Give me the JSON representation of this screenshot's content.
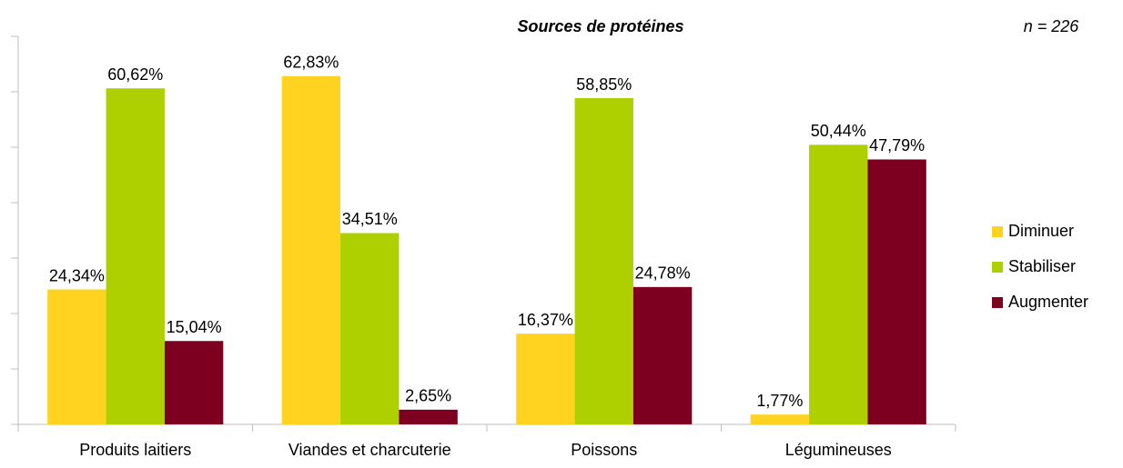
{
  "chart_data": {
    "type": "bar",
    "title": "Sources de protéines",
    "annotation": "n = 226",
    "categories": [
      "Produits laitiers",
      "Viandes et charcuterie",
      "Poissons",
      "Légumineuses"
    ],
    "series": [
      {
        "name": "Diminuer",
        "color": "#ffd320",
        "values": [
          24.34,
          62.83,
          16.37,
          1.77
        ],
        "value_labels": [
          "24,34%",
          "62,83%",
          "16,37%",
          "1,77%"
        ]
      },
      {
        "name": "Stabiliser",
        "color": "#aecf00",
        "values": [
          60.62,
          34.51,
          58.85,
          50.44
        ],
        "value_labels": [
          "60,62%",
          "34,51%",
          "58,85%",
          "50,44%"
        ]
      },
      {
        "name": "Augmenter",
        "color": "#7e0021",
        "values": [
          15.04,
          2.65,
          24.78,
          47.79
        ],
        "value_labels": [
          "15,04%",
          "2,65%",
          "24,78%",
          "47,79%"
        ]
      }
    ],
    "ylim": [
      0,
      70
    ],
    "yticks": [
      0,
      10,
      20,
      30,
      40,
      50,
      60,
      70
    ],
    "legend": "right"
  }
}
